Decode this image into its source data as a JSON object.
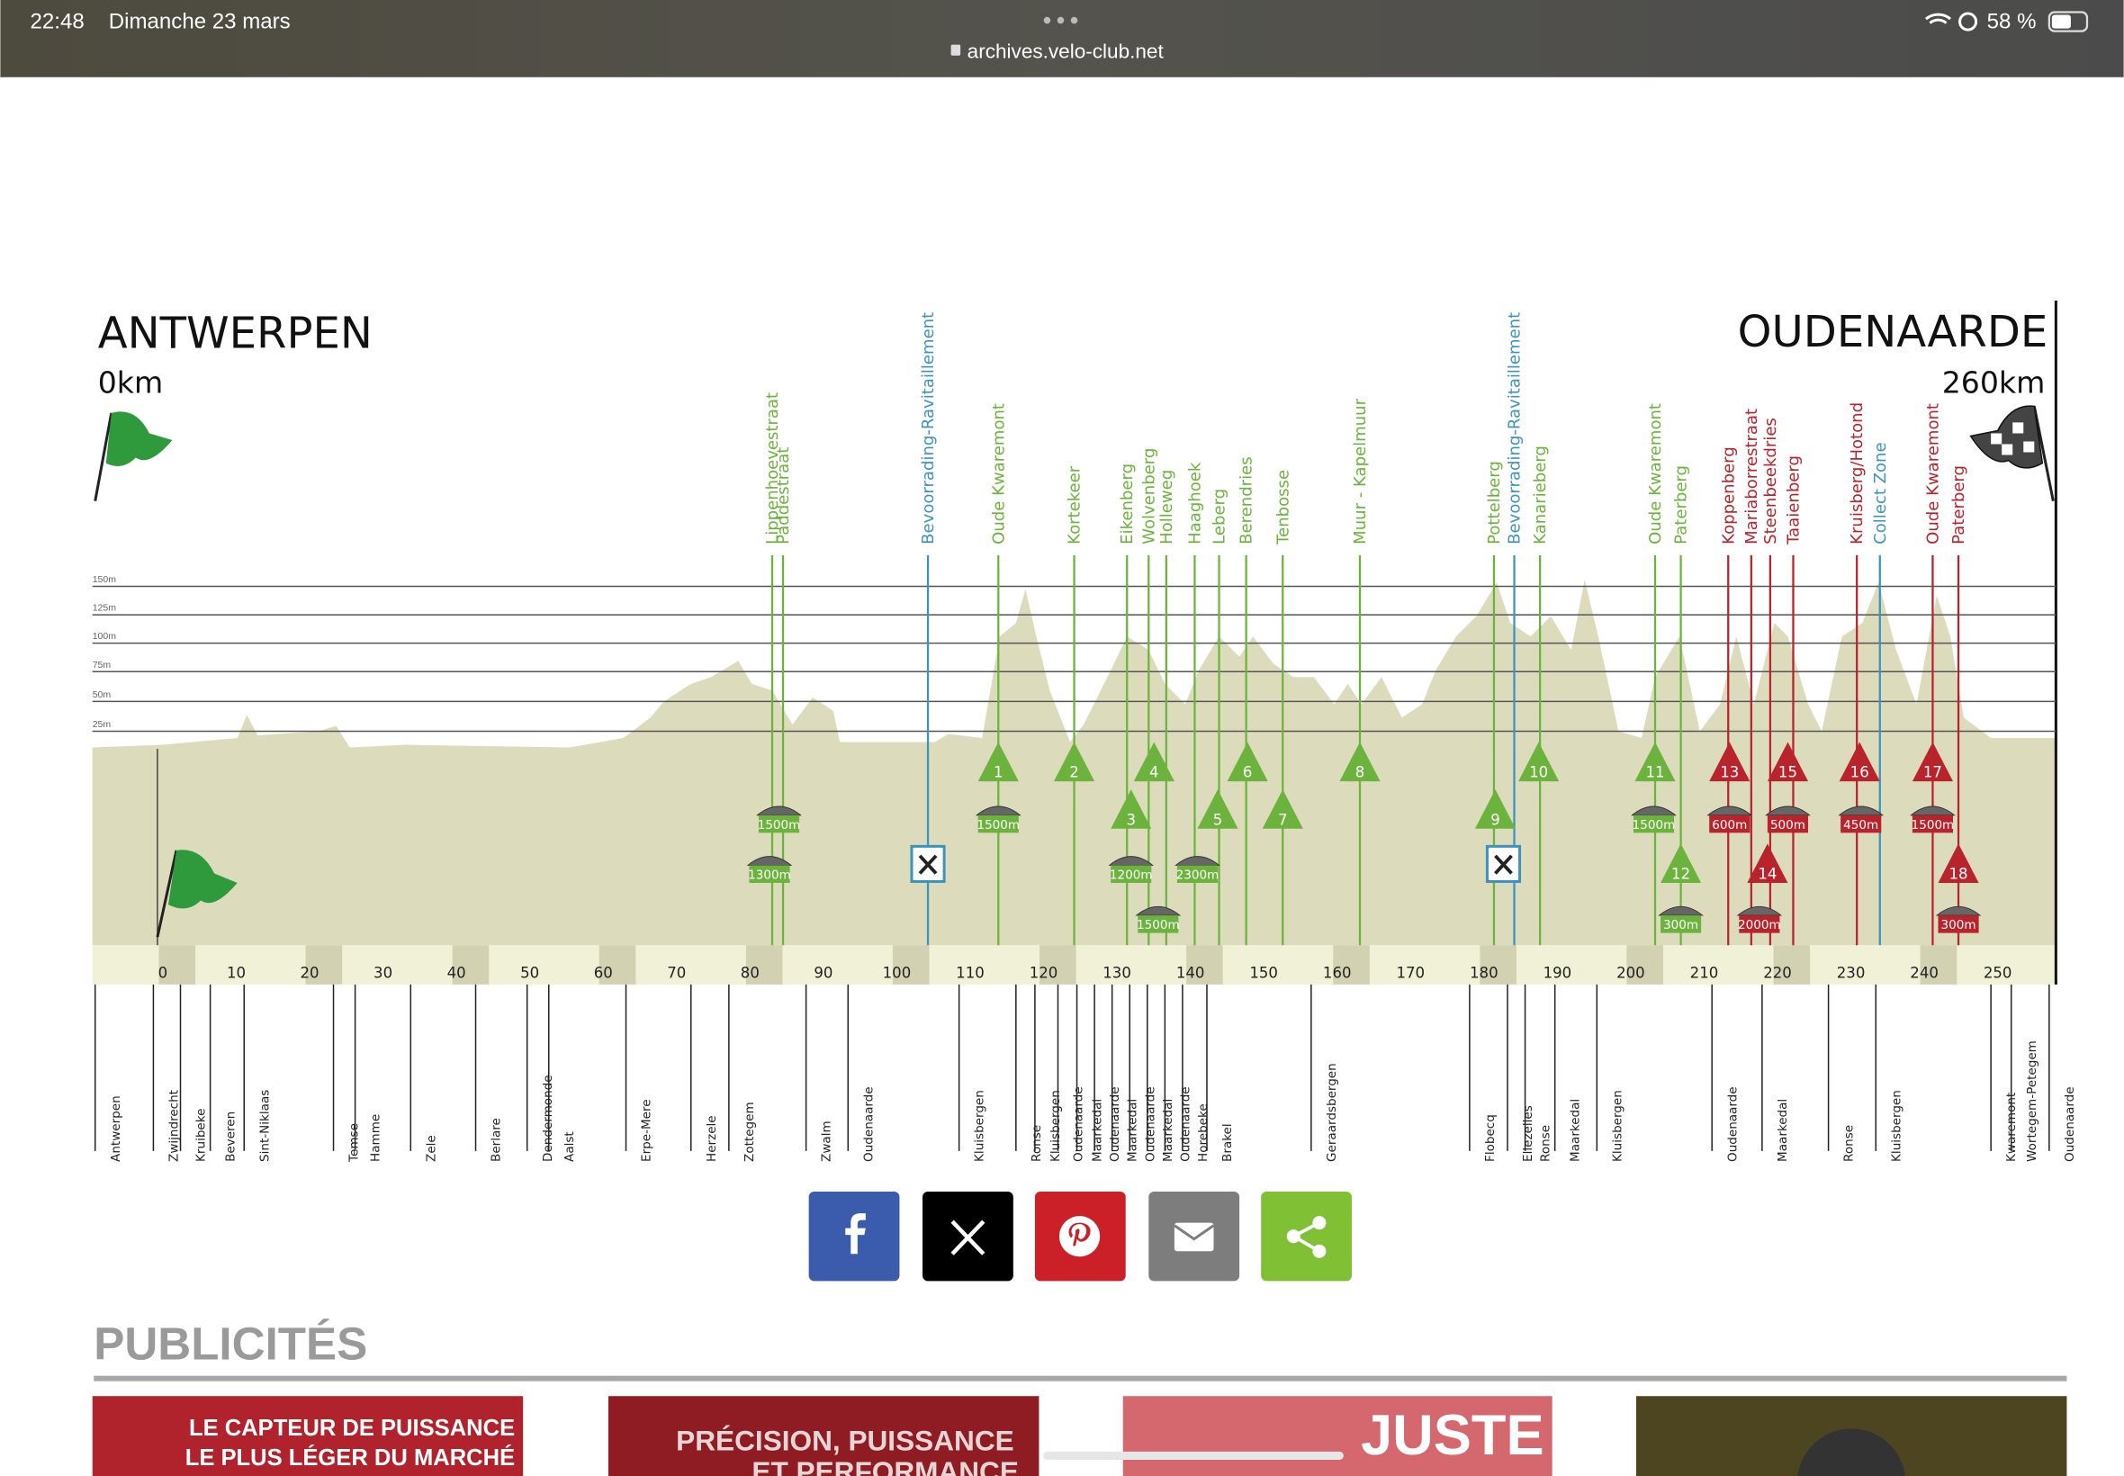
{
  "status_bar": {
    "time": "22:48",
    "date": "Dimanche 23 mars",
    "battery": "58 %",
    "url": "archives.velo-club.net"
  },
  "profile": {
    "start": {
      "name": "ANTWERPEN",
      "km": "0km"
    },
    "finish": {
      "name": "OUDENAARDE",
      "km": "260km"
    },
    "altitude_labels": [
      "150m",
      "125m",
      "100m",
      "75m",
      "50m",
      "25m"
    ],
    "km_labels": [
      0,
      10,
      20,
      30,
      40,
      50,
      60,
      70,
      80,
      90,
      100,
      110,
      120,
      130,
      140,
      150,
      160,
      170,
      180,
      190,
      200,
      210,
      220,
      230,
      240,
      250
    ],
    "climbs": [
      "Lippenhoevestraat",
      "Paddestraat",
      "Bevoorrading-Ravitaillement",
      "Oude Kwaremont",
      "Kortekeer",
      "Eikenberg",
      "Wolvenberg",
      "Holleweg",
      "Haaghoek",
      "Leberg",
      "Berendries",
      "Tenbosse",
      "Muur - Kapelmuur",
      "Pottelberg",
      "Bevoorrading-Ravitaillement",
      "Kanarieberg",
      "Oude Kwaremont",
      "Paterberg",
      "Koppenberg",
      "Mariaborrestraat",
      "Steenbeekdries",
      "Taaienberg",
      "Kruisberg/Hotond",
      "Collect Zone",
      "Oude Kwaremont",
      "Paterberg"
    ],
    "climb_numbers": [
      1,
      2,
      3,
      4,
      5,
      6,
      7,
      8,
      9,
      10,
      11,
      12,
      13,
      14,
      15,
      16,
      17,
      18
    ],
    "sectors": [
      "1500m",
      "1300m",
      "1500m",
      "1200m",
      "2300m",
      "1500m",
      "1500m",
      "300m",
      "600m",
      "2000m",
      "500m",
      "450m",
      "1500m",
      "300m"
    ],
    "towns": [
      "Antwerpen",
      "Zwijndrecht",
      "Kruibeke",
      "Beveren",
      "Sint-Niklaas",
      "Temse",
      "Hamme",
      "Zele",
      "Berlare",
      "Dendermonde",
      "Aalst",
      "Erpe-Mere",
      "Herzele",
      "Zottegem",
      "Zwalm",
      "Oudenaarde",
      "Kluisbergen",
      "Ronse",
      "Kluisbergen",
      "Oudenaarde",
      "Maarkedal",
      "Oudenaarde",
      "Maarkedal",
      "Oudenaarde",
      "Maarkedal",
      "Oudenaarde",
      "Horebeke",
      "Brakel",
      "Geraardsbergen",
      "Flobecq",
      "Ellezelles",
      "Ronse",
      "Maarkedal",
      "Kluisbergen",
      "Oudenaarde",
      "Maarkedal",
      "Ronse",
      "Kluisbergen",
      "Kwaremont",
      "Wortegem-Petegem",
      "Oudenaarde"
    ]
  },
  "ads_section": {
    "title": "PUBLICITÉS",
    "ads": [
      [
        "LE CAPTEUR DE PUISSANCE",
        "LE PLUS LÉGER DU MARCHÉ"
      ],
      [
        "PRÉCISION, PUISSANCE",
        "ET PERFORMANCE"
      ],
      [
        "JUSTE"
      ],
      []
    ]
  }
}
